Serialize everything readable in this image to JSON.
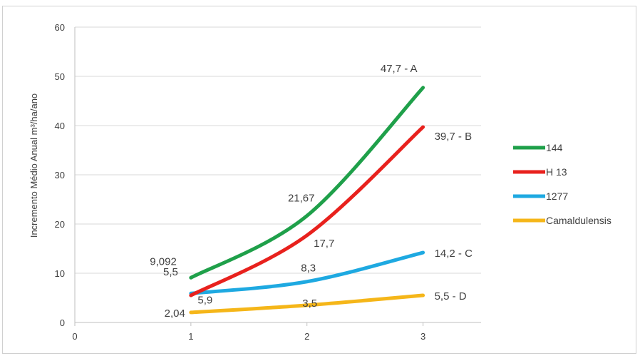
{
  "chart_data": {
    "type": "line",
    "title": "",
    "xlabel": "",
    "ylabel": "Incremento Médio Anual m³/ha/ano",
    "xlim": [
      0,
      3.5
    ],
    "ylim": [
      0,
      60
    ],
    "x_ticks": [
      "0",
      "1",
      "2",
      "3"
    ],
    "y_ticks": [
      "0",
      "10",
      "20",
      "30",
      "40",
      "50",
      "60"
    ],
    "grid": true,
    "legend_position": "right",
    "x": [
      1,
      2,
      3
    ],
    "series": [
      {
        "name": "144",
        "color": "#1fa04a",
        "values": [
          9.092,
          21.67,
          47.7
        ],
        "labels": [
          "9,092",
          "21,67",
          "47,7 - A"
        ]
      },
      {
        "name": "H 13",
        "color": "#e8211d",
        "values": [
          5.5,
          17.7,
          39.7
        ],
        "labels": [
          "5,5",
          "17,7",
          "39,7 - B"
        ]
      },
      {
        "name": "1277",
        "color": "#1ea9e1",
        "values": [
          5.9,
          8.3,
          14.2
        ],
        "labels": [
          "5,9",
          "8,3",
          "14,2 - C"
        ]
      },
      {
        "name": "Camaldulensis",
        "color": "#f5b619",
        "values": [
          2.04,
          3.5,
          5.5
        ],
        "labels": [
          "2,04",
          "3,5",
          "5,5 - D"
        ]
      }
    ]
  }
}
